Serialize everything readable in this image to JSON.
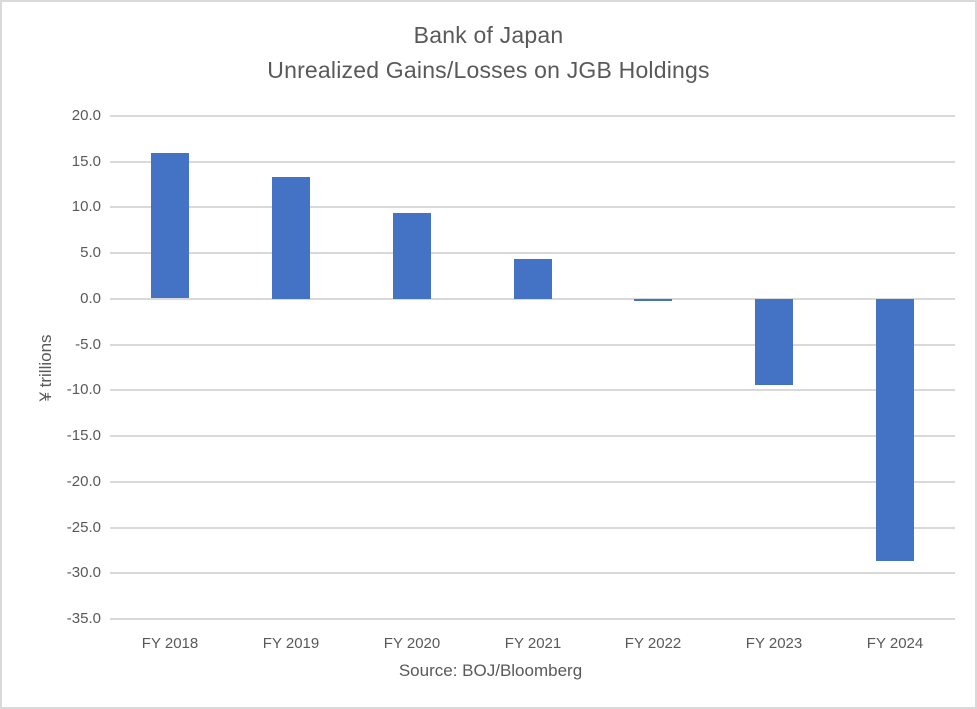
{
  "window": {
    "background": "#ffffff",
    "border_color": "#d9d9d9"
  },
  "chart_data": {
    "type": "bar",
    "title": "Bank of Japan",
    "subtitle": "Unrealized Gains/Losses on JGB Holdings",
    "categories": [
      "FY 2018",
      "FY 2019",
      "FY 2020",
      "FY 2021",
      "FY 2022",
      "FY 2023",
      "FY 2024"
    ],
    "values": [
      15.9,
      13.3,
      9.4,
      4.4,
      -0.2,
      -9.4,
      -28.6
    ],
    "xlabel": "Source: BOJ/Bloomberg",
    "ylabel": "¥ trillions",
    "ylim": [
      -35,
      20
    ],
    "yticks": [
      {
        "value": 20,
        "label": "20.0"
      },
      {
        "value": 15,
        "label": "15.0"
      },
      {
        "value": 10,
        "label": "10.0"
      },
      {
        "value": 5,
        "label": "5.0"
      },
      {
        "value": 0,
        "label": "0.0"
      },
      {
        "value": -5,
        "label": "-5.0"
      },
      {
        "value": -10,
        "label": "-10.0"
      },
      {
        "value": -15,
        "label": "-15.0"
      },
      {
        "value": -20,
        "label": "-20.0"
      },
      {
        "value": -25,
        "label": "-25.0"
      },
      {
        "value": -30,
        "label": "-30.0"
      },
      {
        "value": -35,
        "label": "-35.0"
      }
    ],
    "grid": true,
    "legend": "none",
    "bar_color": "#4472C4",
    "gridline_color": "#d9d9d9",
    "text_color": "#595959"
  }
}
